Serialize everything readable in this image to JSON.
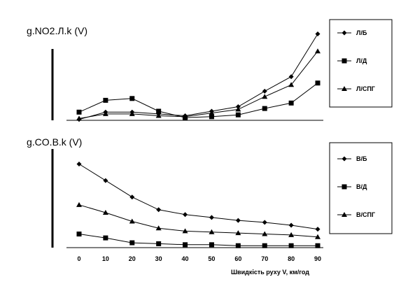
{
  "chart_data": [
    {
      "type": "line",
      "title": "g.NO2.Л.k (V)",
      "x": [
        0,
        10,
        20,
        30,
        40,
        50,
        60,
        70,
        80,
        90
      ],
      "xlabel": "",
      "ylabel": "",
      "ylim": [
        0,
        1
      ],
      "legend_position": "right",
      "series": [
        {
          "name": "Л/Б",
          "marker": "diamond",
          "values": [
            0.01,
            0.09,
            0.09,
            0.07,
            0.05,
            0.1,
            0.15,
            0.32,
            0.48,
            0.95
          ]
        },
        {
          "name": "Л/Д",
          "marker": "square",
          "values": [
            0.09,
            0.22,
            0.24,
            0.1,
            0.03,
            0.04,
            0.06,
            0.13,
            0.19,
            0.41
          ]
        },
        {
          "name": "Л/СПГ",
          "marker": "triangle",
          "values": [
            0.02,
            0.07,
            0.07,
            0.05,
            0.04,
            0.08,
            0.12,
            0.26,
            0.39,
            0.76
          ]
        }
      ]
    },
    {
      "type": "line",
      "title": "g.CO.B.k (V)",
      "x": [
        0,
        10,
        20,
        30,
        40,
        50,
        60,
        70,
        80,
        90
      ],
      "xlabel": "Швидкість руху  V, км/год",
      "ylabel": "",
      "ylim": [
        0,
        1
      ],
      "legend_position": "right",
      "series": [
        {
          "name": "В/Б",
          "marker": "diamond",
          "values": [
            0.86,
            0.69,
            0.52,
            0.39,
            0.34,
            0.31,
            0.28,
            0.26,
            0.23,
            0.19
          ]
        },
        {
          "name": "В/Д",
          "marker": "square",
          "values": [
            0.14,
            0.1,
            0.05,
            0.04,
            0.03,
            0.03,
            0.02,
            0.02,
            0.02,
            0.02
          ]
        },
        {
          "name": "В/СПГ",
          "marker": "triangle",
          "values": [
            0.44,
            0.36,
            0.27,
            0.2,
            0.17,
            0.16,
            0.15,
            0.14,
            0.13,
            0.11
          ]
        }
      ]
    }
  ]
}
